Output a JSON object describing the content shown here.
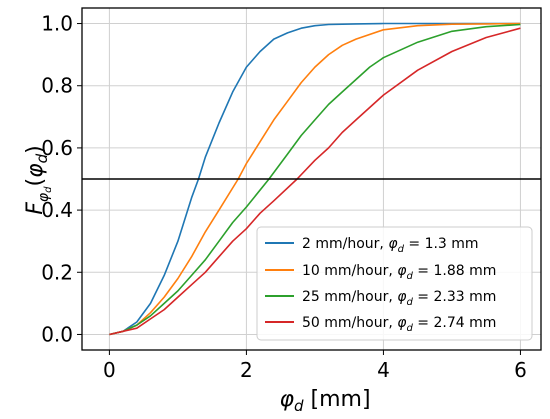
{
  "chart_data": {
    "type": "line",
    "title": "",
    "xlabel": {
      "symbol": "φ",
      "sub": "d",
      "unit": " [mm]"
    },
    "ylabel": {
      "symbol": "F",
      "sub": "φ",
      "subsub": "d",
      "paren_open": "(",
      "paren_symbol": "φ",
      "paren_sub": "d",
      "paren_close": ")"
    },
    "xlim": [
      -0.4,
      6.3
    ],
    "ylim": [
      -0.05,
      1.05
    ],
    "xticks": [
      0,
      2,
      4,
      6
    ],
    "xtick_labels": [
      "0",
      "2",
      "4",
      "6"
    ],
    "yticks": [
      0.0,
      0.2,
      0.4,
      0.6,
      0.8,
      1.0
    ],
    "ytick_labels": [
      "0.0",
      "0.2",
      "0.4",
      "0.6",
      "0.8",
      "1.0"
    ],
    "grid": true,
    "reference_line": {
      "y": 0.5,
      "color": "#000000"
    },
    "legend_position": "lower-right",
    "series": [
      {
        "name_prefix": "2 mm/hour, ",
        "name_symbol": "φ",
        "name_sub": "d",
        "name_suffix": " = 1.3 mm",
        "color": "#1f77b4",
        "x": [
          0,
          0.2,
          0.4,
          0.6,
          0.8,
          1.0,
          1.2,
          1.3,
          1.4,
          1.6,
          1.8,
          2.0,
          2.2,
          2.4,
          2.6,
          2.8,
          3.0,
          3.2,
          3.6,
          4.0,
          5.0,
          6.0
        ],
        "y": [
          0.0,
          0.01,
          0.04,
          0.1,
          0.19,
          0.3,
          0.44,
          0.5,
          0.57,
          0.68,
          0.78,
          0.86,
          0.91,
          0.95,
          0.97,
          0.985,
          0.993,
          0.997,
          0.999,
          1.0,
          1.0,
          1.0
        ]
      },
      {
        "name_prefix": "10 mm/hour, ",
        "name_symbol": "φ",
        "name_sub": "d",
        "name_suffix": " = 1.88 mm",
        "color": "#ff7f0e",
        "x": [
          0,
          0.2,
          0.4,
          0.6,
          0.8,
          1.0,
          1.2,
          1.4,
          1.6,
          1.88,
          2.0,
          2.2,
          2.4,
          2.6,
          2.8,
          3.0,
          3.2,
          3.4,
          3.6,
          4.0,
          4.5,
          5.0,
          5.5,
          6.0
        ],
        "y": [
          0.0,
          0.01,
          0.03,
          0.07,
          0.12,
          0.18,
          0.25,
          0.33,
          0.4,
          0.5,
          0.55,
          0.62,
          0.69,
          0.75,
          0.81,
          0.86,
          0.9,
          0.93,
          0.95,
          0.98,
          0.993,
          0.998,
          0.999,
          1.0
        ]
      },
      {
        "name_prefix": "25 mm/hour, ",
        "name_symbol": "φ",
        "name_sub": "d",
        "name_suffix": " = 2.33 mm",
        "color": "#2ca02c",
        "x": [
          0,
          0.2,
          0.4,
          0.6,
          0.8,
          1.0,
          1.2,
          1.4,
          1.6,
          1.8,
          2.0,
          2.33,
          2.6,
          2.8,
          3.0,
          3.2,
          3.4,
          3.6,
          3.8,
          4.0,
          4.5,
          5.0,
          5.5,
          6.0
        ],
        "y": [
          0.0,
          0.01,
          0.03,
          0.06,
          0.1,
          0.14,
          0.19,
          0.24,
          0.3,
          0.36,
          0.41,
          0.5,
          0.58,
          0.64,
          0.69,
          0.74,
          0.78,
          0.82,
          0.86,
          0.89,
          0.94,
          0.975,
          0.99,
          0.997
        ]
      },
      {
        "name_prefix": "50 mm/hour, ",
        "name_symbol": "φ",
        "name_sub": "d",
        "name_suffix": " = 2.74 mm",
        "color": "#d62728",
        "x": [
          0,
          0.2,
          0.4,
          0.6,
          0.8,
          1.0,
          1.2,
          1.4,
          1.6,
          1.8,
          2.0,
          2.2,
          2.4,
          2.74,
          3.0,
          3.2,
          3.4,
          3.6,
          3.8,
          4.0,
          4.5,
          5.0,
          5.5,
          6.0
        ],
        "y": [
          0.0,
          0.01,
          0.02,
          0.05,
          0.08,
          0.12,
          0.16,
          0.2,
          0.25,
          0.3,
          0.34,
          0.39,
          0.43,
          0.5,
          0.56,
          0.6,
          0.65,
          0.69,
          0.73,
          0.77,
          0.85,
          0.91,
          0.955,
          0.985
        ]
      }
    ]
  }
}
